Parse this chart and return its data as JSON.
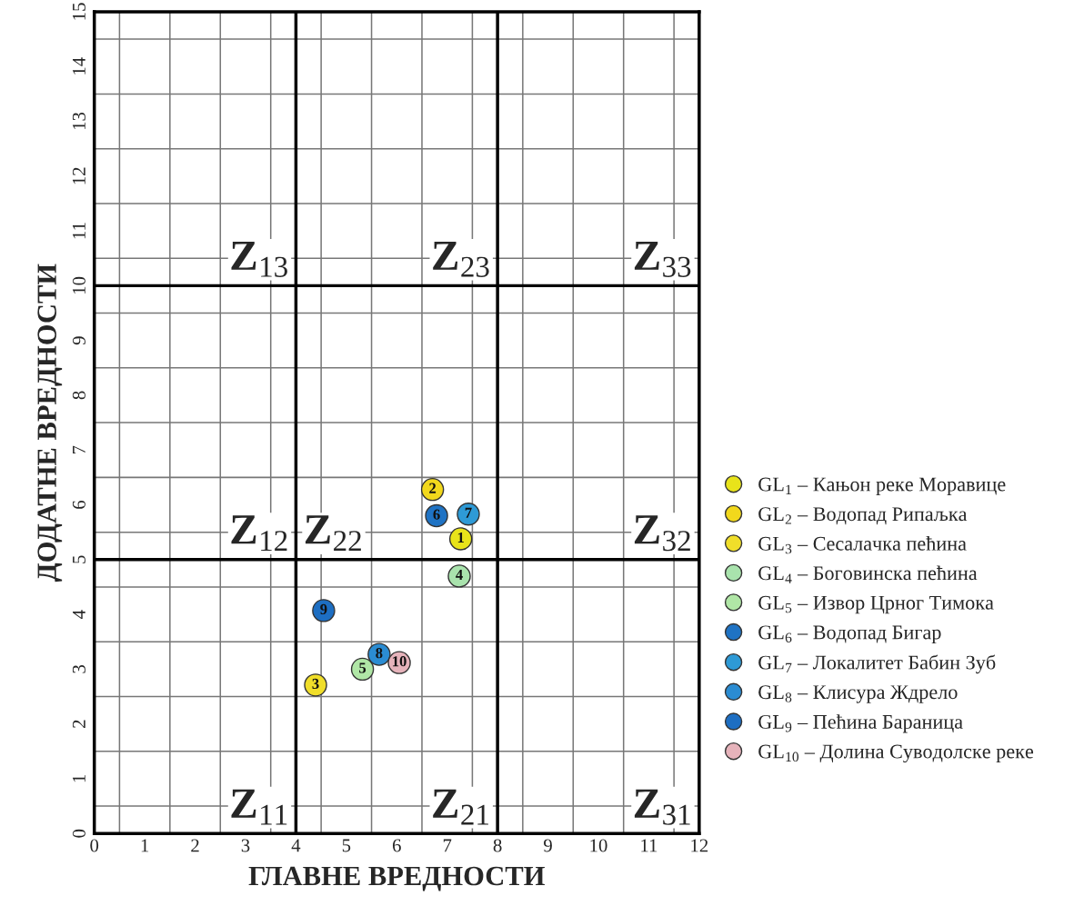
{
  "chart_data": {
    "type": "scatter",
    "xlabel": "ГЛАВНЕ ВРЕДНОСТИ",
    "ylabel": "ДОДАТНЕ ВРЕДНОСТИ",
    "xlim": [
      0,
      12
    ],
    "ylim": [
      0,
      15
    ],
    "xticks": [
      0,
      1,
      2,
      3,
      4,
      5,
      6,
      7,
      8,
      9,
      10,
      11,
      12
    ],
    "yticks": [
      0,
      1,
      2,
      3,
      4,
      5,
      6,
      7,
      8,
      9,
      10,
      11,
      12,
      13,
      14,
      15
    ],
    "grid": true,
    "legend": "right",
    "marker": "circle",
    "series": [
      {
        "name": "GL$_{1}$ – Кањон реке Моравице",
        "color": "#e8e31a",
        "x": [
          7.27
        ],
        "values": [
          5.38
        ]
      },
      {
        "name": "GL$_{2}$ – Водопад Рипаљка",
        "color": "#f2d81c",
        "x": [
          6.71
        ],
        "values": [
          6.28
        ]
      },
      {
        "name": "GL$_{3}$ – Сесалачка пећина",
        "color": "#f0de2a",
        "x": [
          4.39
        ],
        "values": [
          2.71
        ]
      },
      {
        "name": "GL$_{4}$ – Боговинска пећина",
        "color": "#a9e3ad",
        "x": [
          7.24
        ],
        "values": [
          4.7
        ]
      },
      {
        "name": "GL$_{5}$ – Извор Црног Тимока",
        "color": "#b0e6a6",
        "x": [
          5.32
        ],
        "values": [
          3.0
        ]
      },
      {
        "name": "GL$_{6}$ – Водопад Бигар",
        "color": "#1f73c4",
        "x": [
          6.79
        ],
        "values": [
          5.8
        ]
      },
      {
        "name": "GL$_{7}$ – Локалитет Бабин Зуб",
        "color": "#2e9ad6",
        "x": [
          7.42
        ],
        "values": [
          5.83
        ]
      },
      {
        "name": "GL$_{8}$ – Клисура Ждрело",
        "color": "#2b8cd2",
        "x": [
          5.65
        ],
        "values": [
          3.27
        ]
      },
      {
        "name": "GL$_{9}$ – Пећина Бараница",
        "color": "#1d6ec2",
        "x": [
          4.55
        ],
        "values": [
          4.07
        ]
      },
      {
        "name": "GL$_{10}$ – Долина Суводолске реке",
        "color": "#e6b3bb",
        "x": [
          6.05
        ],
        "values": [
          3.12
        ]
      }
    ],
    "ref_lines": [
      {
        "axis": "x",
        "value": 4,
        "color": "#000000"
      },
      {
        "axis": "x",
        "value": 8,
        "color": "#000000"
      },
      {
        "axis": "y",
        "value": 5,
        "color": "#000000"
      },
      {
        "axis": "y",
        "value": 10,
        "color": "#000000"
      }
    ],
    "annotations": [
      {
        "text": "1",
        "x": 7.27,
        "y": 5.38
      },
      {
        "text": "2",
        "x": 6.71,
        "y": 6.28
      },
      {
        "text": "3",
        "x": 4.39,
        "y": 2.71
      },
      {
        "text": "4",
        "x": 7.24,
        "y": 4.7
      },
      {
        "text": "5",
        "x": 5.32,
        "y": 3.0
      },
      {
        "text": "6",
        "x": 6.79,
        "y": 5.8
      },
      {
        "text": "7",
        "x": 7.42,
        "y": 5.83
      },
      {
        "text": "8",
        "x": 5.65,
        "y": 3.27
      },
      {
        "text": "9",
        "x": 4.55,
        "y": 4.07
      },
      {
        "text": "10",
        "x": 6.05,
        "y": 3.12
      },
      "Z$_{11}$",
      "Z$_{12}$",
      "Z$_{13}$",
      "Z$_{21}$",
      "Z$_{22}$",
      "Z$_{23}$",
      "Z$_{31}$",
      "Z$_{32}$",
      "Z$_{33}$"
    ]
  }
}
